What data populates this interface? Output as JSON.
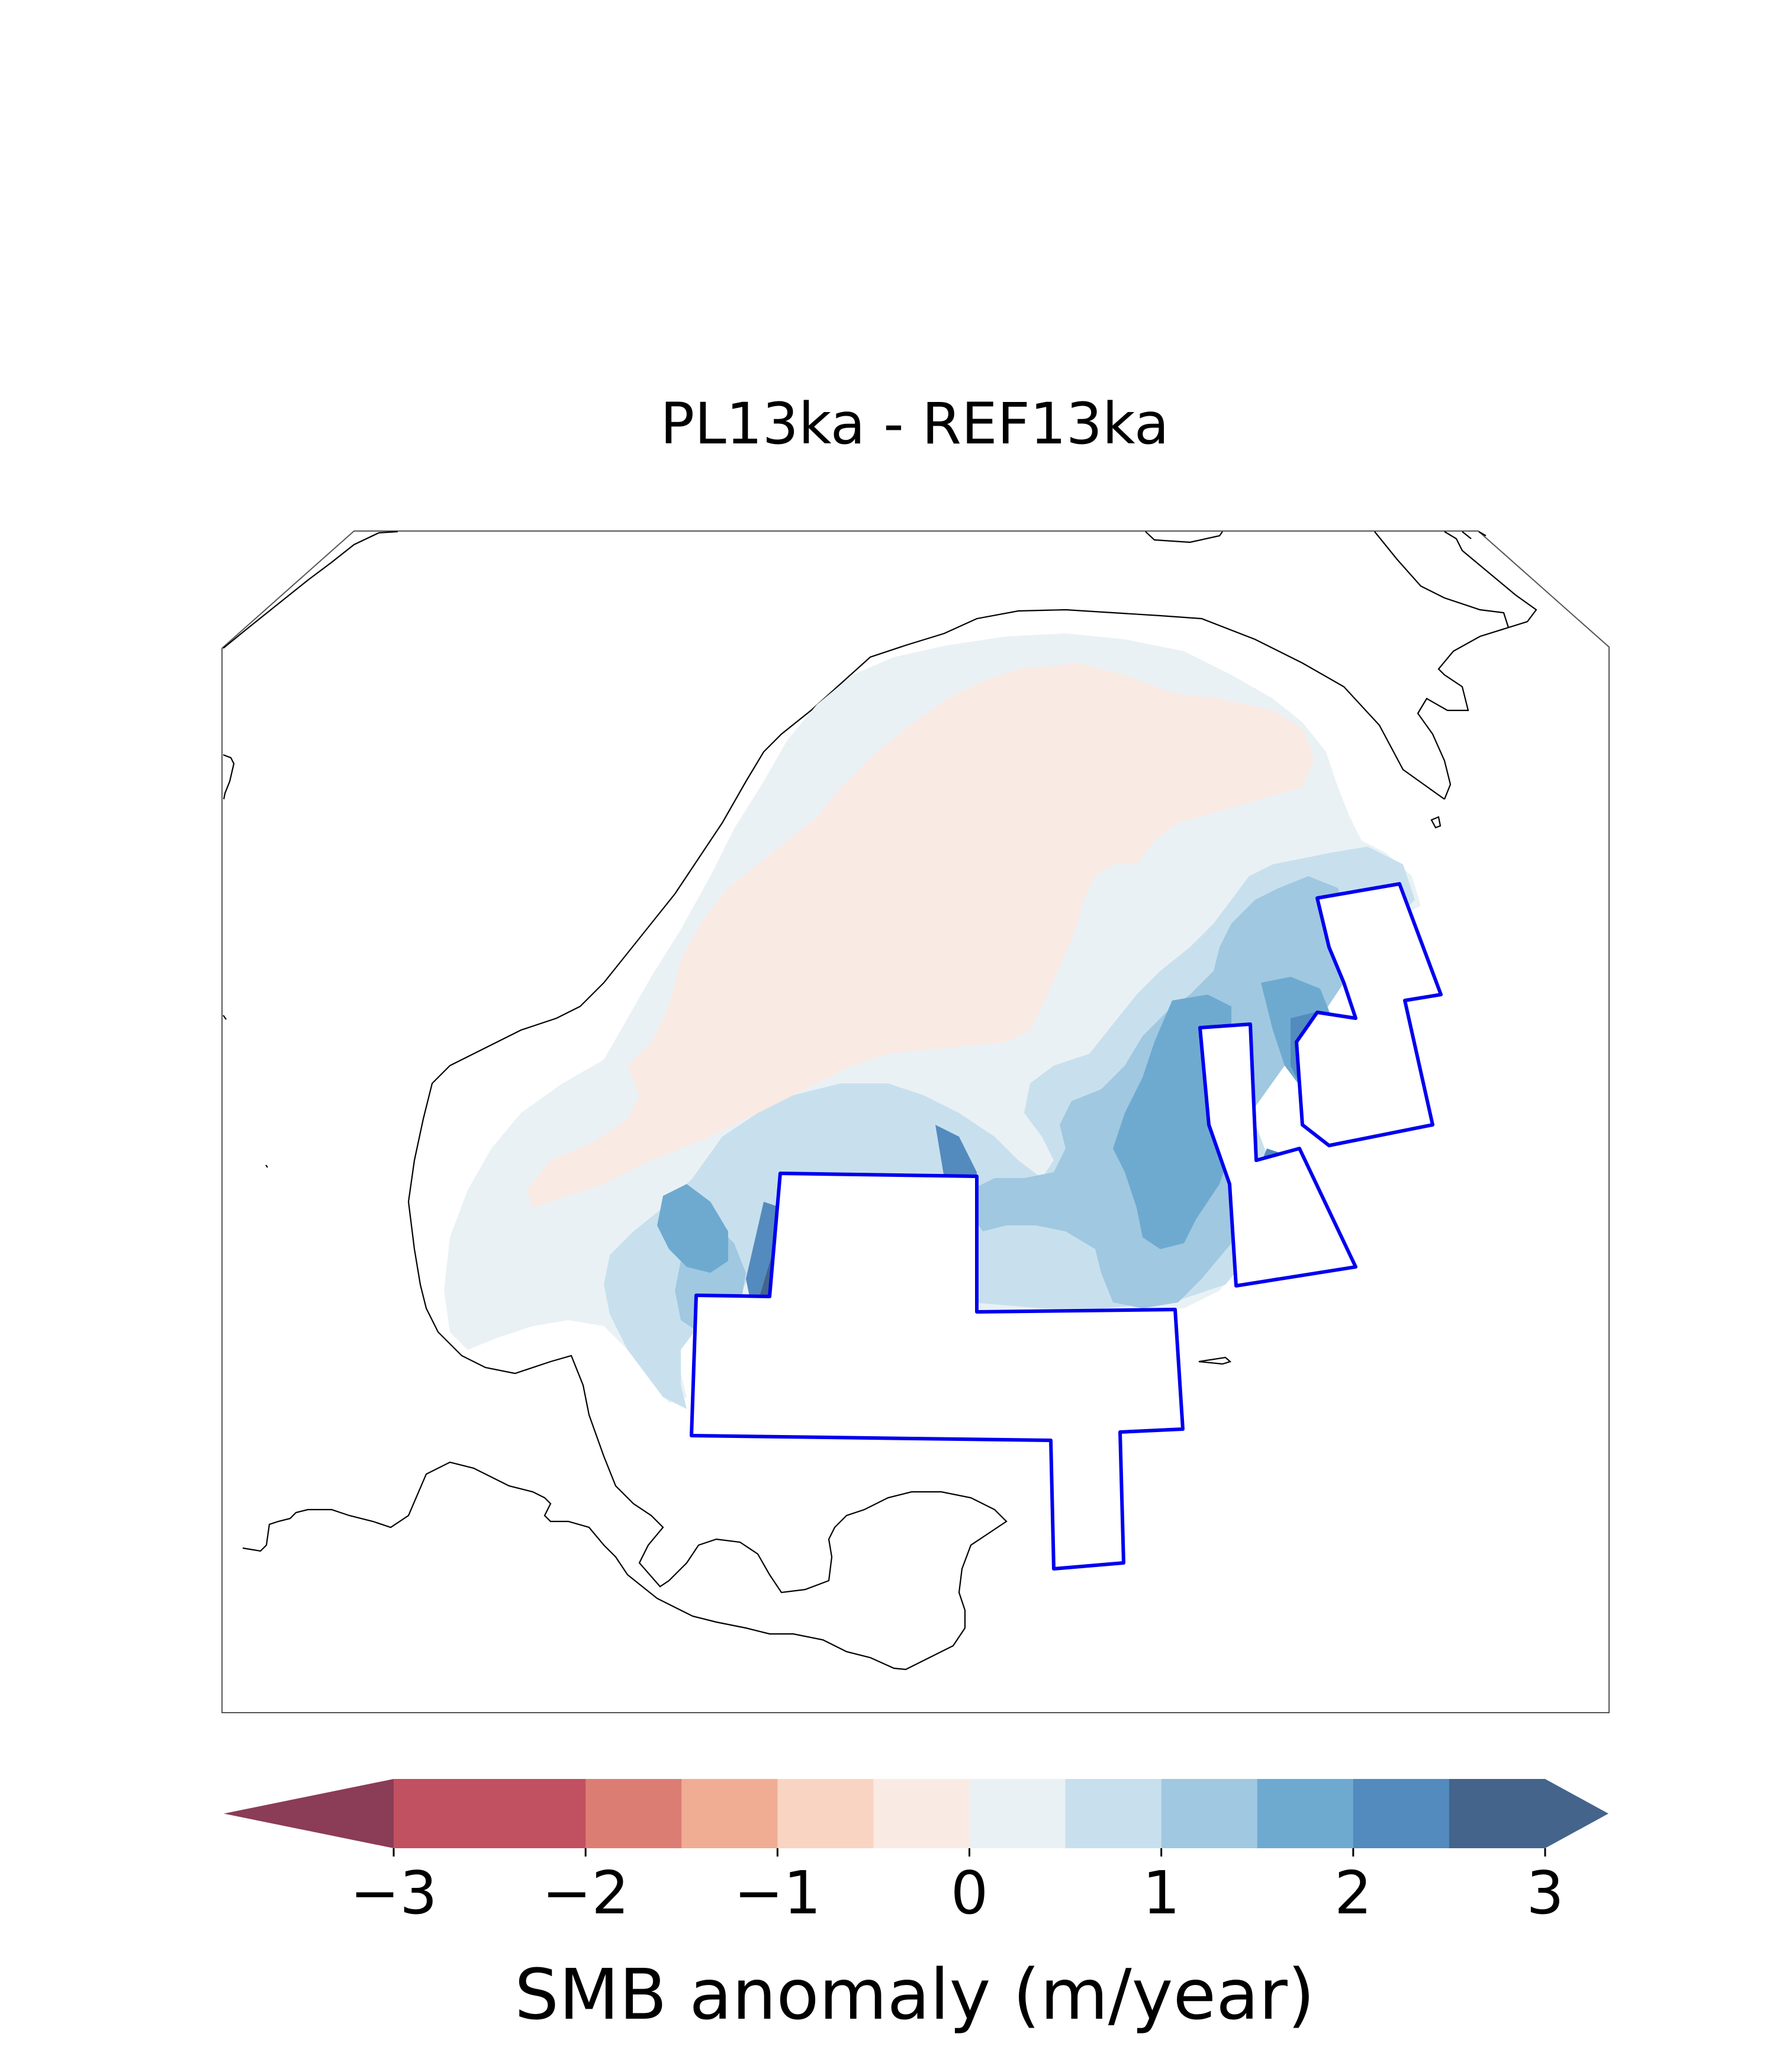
{
  "title": "PL13ka - REF13ka",
  "colorbar": {
    "label": "SMB anomaly (m/year)",
    "ticks": [
      "−3",
      "−2",
      "−1",
      "0",
      "1",
      "2",
      "3"
    ],
    "tick_values": [
      -3,
      -2,
      -1,
      0,
      1,
      2,
      3
    ],
    "bins": [
      {
        "from": -3.0,
        "to": -2.5,
        "color": "#c15160"
      },
      {
        "from": -2.5,
        "to": -2.0,
        "color": "#c15160"
      },
      {
        "from": -2.0,
        "to": -1.5,
        "color": "#dc7d74"
      },
      {
        "from": -1.5,
        "to": -1.0,
        "color": "#f0ad94"
      },
      {
        "from": -1.0,
        "to": -0.5,
        "color": "#f9d4c2"
      },
      {
        "from": -0.5,
        "to": 0.0,
        "color": "#faeae4"
      },
      {
        "from": 0.0,
        "to": 0.5,
        "color": "#e9f1f5"
      },
      {
        "from": 0.5,
        "to": 1.0,
        "color": "#c8e0ed"
      },
      {
        "from": 1.0,
        "to": 1.5,
        "color": "#a0c8e1"
      },
      {
        "from": 1.5,
        "to": 2.0,
        "color": "#6eaad0"
      },
      {
        "from": 2.0,
        "to": 2.5,
        "color": "#538bbe"
      },
      {
        "from": 2.5,
        "to": 3.0,
        "color": "#44648c"
      }
    ],
    "under_color": "#8b3c56",
    "over_color": "#44648c",
    "extend": "both"
  },
  "map": {
    "field": "SMB anomaly",
    "units": "m/year",
    "region_outline_color": "#0000ee",
    "coastline_color": "#000000"
  }
}
